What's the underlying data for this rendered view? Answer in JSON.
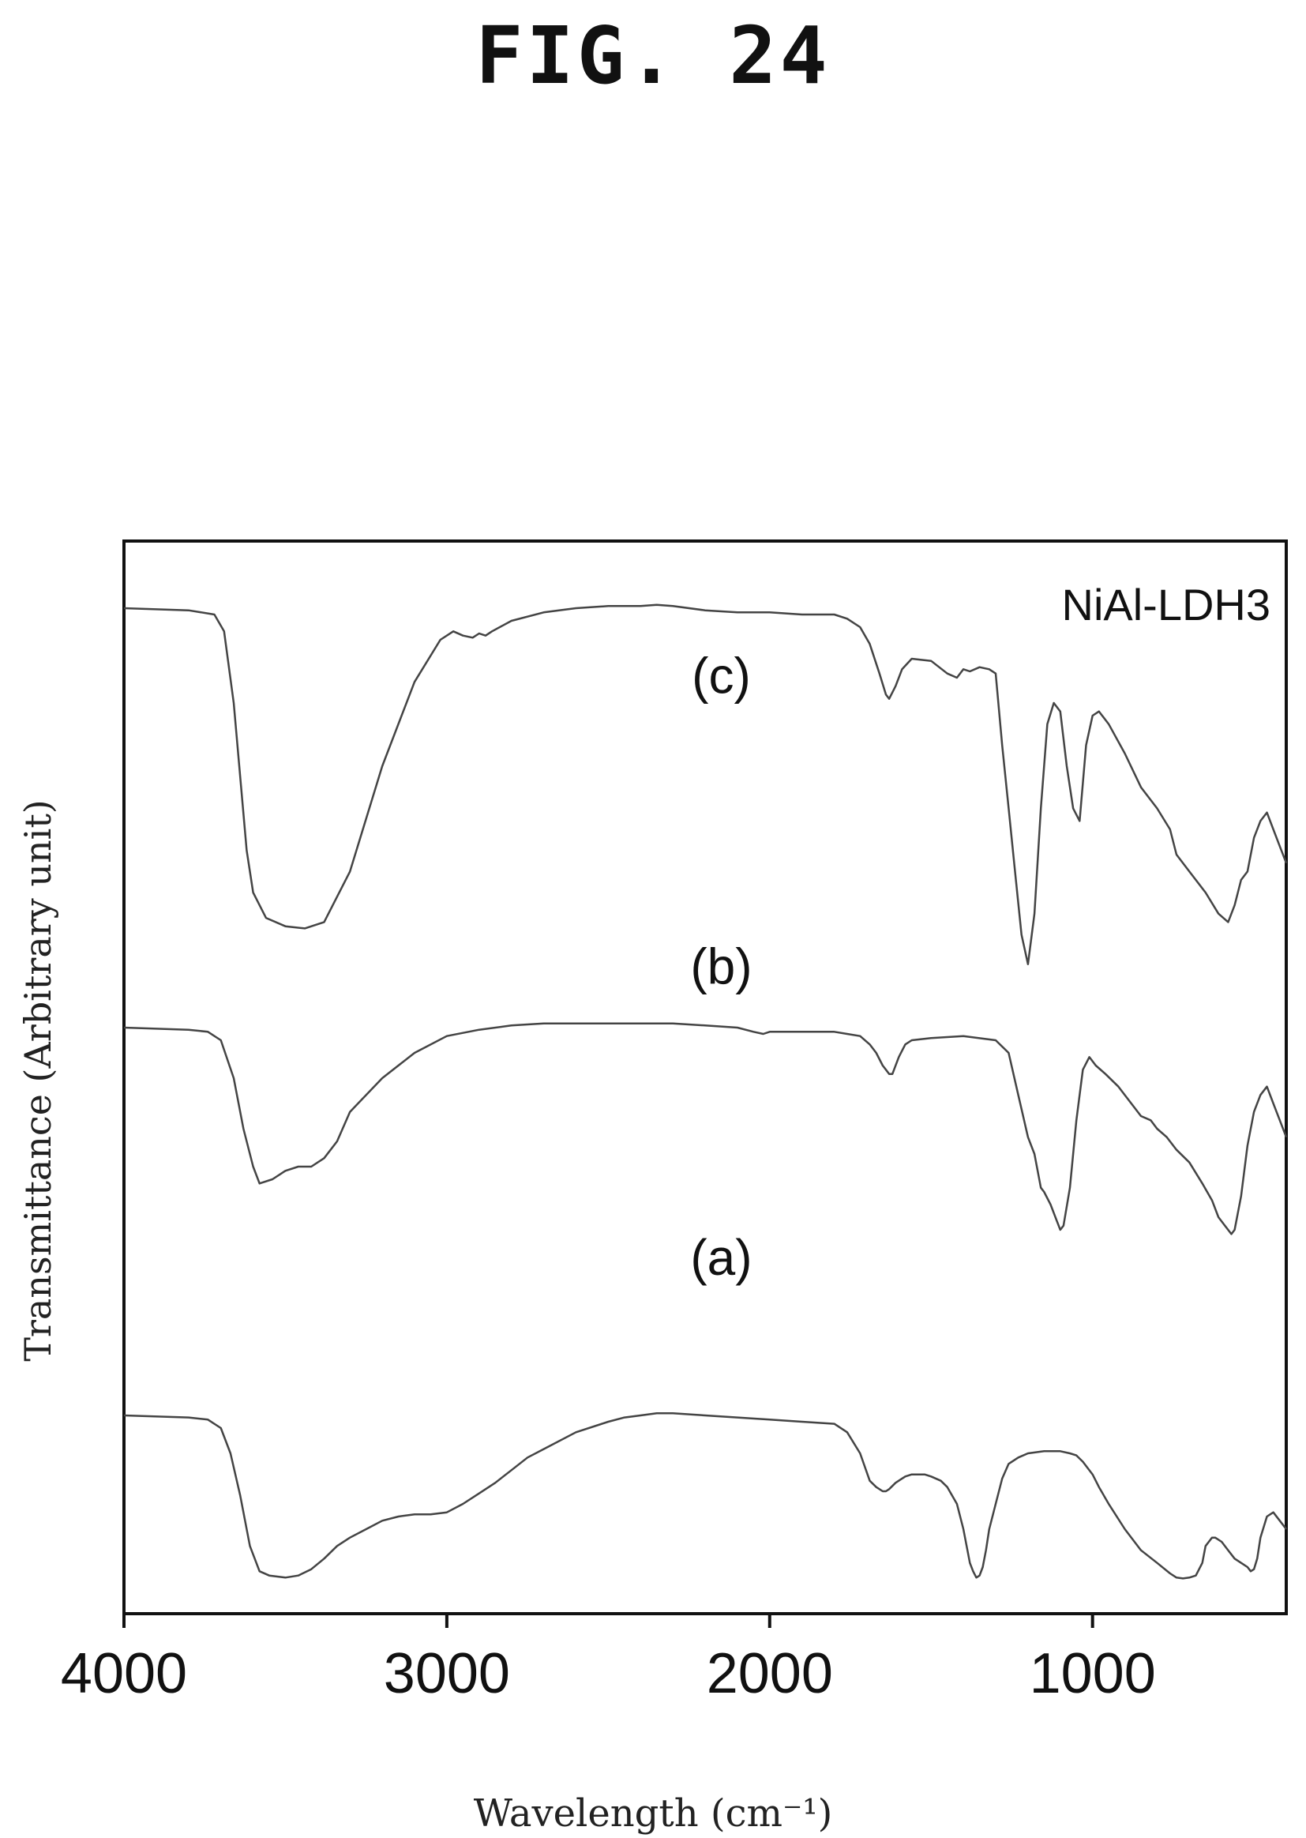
{
  "figure_label": "FIG. 24",
  "chart_data": {
    "type": "line",
    "title": "",
    "annotation": "NiAl-LDH3",
    "xlabel": "Wavelength (cm⁻¹)",
    "ylabel": "Transmittance (Arbitrary unit)",
    "xlim": [
      4000,
      400
    ],
    "x_reversed": true,
    "xticks": [
      4000,
      3000,
      2000,
      1000
    ],
    "ylim": [
      0,
      100
    ],
    "y_ticks_labeled": false,
    "grid": false,
    "legend": "none",
    "line_color": "#444444",
    "series": [
      {
        "name": "(c)",
        "x": [
          4000,
          3800,
          3720,
          3690,
          3660,
          3620,
          3600,
          3560,
          3500,
          3440,
          3380,
          3300,
          3200,
          3100,
          3020,
          2980,
          2950,
          2920,
          2900,
          2880,
          2860,
          2800,
          2700,
          2600,
          2500,
          2400,
          2350,
          2300,
          2200,
          2100,
          2000,
          1900,
          1800,
          1760,
          1720,
          1690,
          1660,
          1640,
          1630,
          1610,
          1590,
          1560,
          1500,
          1450,
          1420,
          1400,
          1380,
          1350,
          1320,
          1300,
          1280,
          1260,
          1240,
          1220,
          1200,
          1180,
          1160,
          1140,
          1120,
          1100,
          1080,
          1060,
          1040,
          1020,
          1000,
          980,
          950,
          900,
          850,
          800,
          760,
          740,
          700,
          650,
          610,
          580,
          560,
          540,
          520,
          500,
          480,
          460,
          440,
          420,
          400
        ],
        "y": [
          92.5,
          92,
          91,
          87,
          70,
          35,
          25,
          19,
          17,
          16.5,
          18,
          30,
          55,
          75,
          85,
          87,
          86,
          85.5,
          86.5,
          86,
          87,
          89.5,
          91.5,
          92.5,
          93,
          93,
          93.3,
          93,
          92,
          91.5,
          91.5,
          91,
          91,
          90,
          88,
          84,
          77,
          72,
          71,
          74,
          78,
          80.5,
          80,
          77,
          76,
          78,
          77.5,
          78.5,
          78,
          77,
          60,
          45,
          30,
          15,
          8,
          20,
          45,
          65,
          70,
          68,
          55,
          45,
          42,
          60,
          67,
          68,
          65,
          58,
          50,
          45,
          40,
          34,
          30,
          25,
          20,
          18,
          22,
          28,
          30,
          38,
          42,
          44,
          40,
          36,
          32
        ]
      },
      {
        "name": "(b)",
        "x": [
          4000,
          3800,
          3740,
          3700,
          3660,
          3630,
          3600,
          3580,
          3540,
          3500,
          3460,
          3420,
          3380,
          3340,
          3300,
          3200,
          3100,
          3000,
          2900,
          2800,
          2700,
          2600,
          2500,
          2400,
          2300,
          2200,
          2100,
          2050,
          2020,
          2000,
          1950,
          1900,
          1800,
          1760,
          1720,
          1690,
          1670,
          1650,
          1640,
          1630,
          1620,
          1600,
          1580,
          1560,
          1500,
          1400,
          1300,
          1260,
          1230,
          1200,
          1180,
          1160,
          1150,
          1130,
          1110,
          1100,
          1090,
          1070,
          1050,
          1030,
          1010,
          990,
          960,
          920,
          880,
          850,
          820,
          800,
          770,
          740,
          700,
          660,
          630,
          610,
          590,
          570,
          560,
          540,
          520,
          500,
          480,
          460,
          440,
          420,
          400
        ],
        "y": [
          62,
          61.5,
          61,
          59,
          50,
          38,
          29,
          25,
          26,
          28,
          29,
          29,
          31,
          35,
          42,
          50,
          56,
          60,
          61.5,
          62.5,
          63,
          63,
          63,
          63,
          63,
          62.5,
          62,
          61,
          60.5,
          61,
          61,
          61,
          61,
          60.5,
          60,
          58,
          56,
          53,
          52,
          51,
          51,
          55,
          58,
          59,
          59.5,
          60,
          59,
          56,
          46,
          36,
          32,
          24,
          23,
          20,
          16,
          14,
          15,
          24,
          40,
          52,
          55,
          53,
          51,
          48,
          44,
          41,
          40,
          38,
          36,
          33,
          30,
          25,
          21,
          17,
          15,
          13,
          14,
          22,
          34,
          42,
          46,
          48,
          44,
          40,
          36
        ]
      },
      {
        "name": "(a)",
        "x": [
          4000,
          3800,
          3740,
          3700,
          3670,
          3640,
          3610,
          3580,
          3550,
          3500,
          3460,
          3420,
          3380,
          3340,
          3300,
          3250,
          3200,
          3150,
          3100,
          3050,
          3000,
          2950,
          2900,
          2850,
          2800,
          2750,
          2700,
          2600,
          2500,
          2450,
          2400,
          2350,
          2300,
          2200,
          2100,
          2000,
          1900,
          1800,
          1760,
          1720,
          1690,
          1670,
          1650,
          1640,
          1630,
          1610,
          1580,
          1560,
          1520,
          1500,
          1470,
          1450,
          1420,
          1400,
          1390,
          1380,
          1370,
          1360,
          1350,
          1340,
          1330,
          1320,
          1300,
          1280,
          1260,
          1230,
          1200,
          1150,
          1120,
          1100,
          1070,
          1050,
          1030,
          1000,
          980,
          950,
          900,
          850,
          800,
          760,
          740,
          720,
          700,
          680,
          660,
          650,
          640,
          630,
          620,
          600,
          580,
          560,
          540,
          520,
          510,
          500,
          490,
          480,
          460,
          440,
          420,
          400
        ],
        "y": [
          39,
          38.5,
          38,
          36,
          30,
          20,
          8,
          2,
          1,
          0.5,
          1,
          2.5,
          5,
          8,
          10,
          12,
          14,
          15,
          15.5,
          15.5,
          16,
          18,
          20.5,
          23,
          26,
          29,
          31,
          35,
          37.5,
          38.5,
          39,
          39.5,
          39.5,
          39,
          38.5,
          38,
          37.5,
          37,
          35,
          30,
          23.5,
          22,
          21,
          21,
          21.5,
          23,
          24.5,
          25,
          25,
          24.5,
          23.5,
          22,
          18,
          12,
          8,
          4,
          2,
          0.5,
          1,
          3,
          7,
          12,
          18,
          24,
          27.5,
          29,
          30,
          30.5,
          30.5,
          30.5,
          30,
          29.5,
          28,
          25,
          22,
          18,
          12,
          7,
          4,
          1.5,
          0.5,
          0.3,
          0.5,
          1,
          4,
          8,
          9,
          10,
          10,
          9,
          7,
          5,
          4,
          3,
          2,
          2.5,
          5,
          10,
          15,
          16,
          14,
          12
        ]
      }
    ],
    "series_offsets": [
      58,
      29,
      0
    ],
    "series_scale": 0.42
  }
}
